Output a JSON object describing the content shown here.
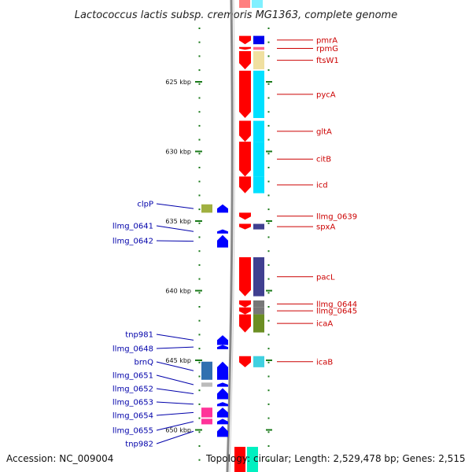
{
  "title": "Lactococcus lactis subsp. cremoris MG1363, complete genome",
  "accession": "Accession: NC_009004",
  "topology": "Topology: circular; Length: 2,529,478 bp; Genes: 2,515",
  "colors": {
    "forward_gene": "#ff0000",
    "reverse_gene": "#0000ff",
    "ruler": "#1a7a1a",
    "backbone": "#888888",
    "right_label": "#cc0000",
    "left_label": "#0000aa"
  },
  "kbp_marks": [
    {
      "label": "625 kbp",
      "kbp": 625
    },
    {
      "label": "630 kbp",
      "kbp": 630
    },
    {
      "label": "635 kbp",
      "kbp": 635
    },
    {
      "label": "640 kbp",
      "kbp": 640
    },
    {
      "label": "645 kbp",
      "kbp": 645
    },
    {
      "label": "650 kbp",
      "kbp": 650
    }
  ],
  "right_genes": [
    {
      "name": "pmrA",
      "start_kbp": 621.7,
      "end_kbp": 622.3,
      "strand": "+",
      "cog_color": "#0000ee"
    },
    {
      "name": "rpmG",
      "start_kbp": 622.5,
      "end_kbp": 622.7,
      "strand": "+",
      "cog_color": "#ff6688"
    },
    {
      "name": "ftsW1",
      "start_kbp": 622.8,
      "end_kbp": 624.1,
      "strand": "+",
      "cog_color": "#f0e0a0"
    },
    {
      "name": "pycA",
      "start_kbp": 624.2,
      "end_kbp": 627.6,
      "strand": "+",
      "cog_color": "#00e0ff"
    },
    {
      "name": "gltA",
      "start_kbp": 627.8,
      "end_kbp": 629.3,
      "strand": "+",
      "cog_color": "#00e0ff"
    },
    {
      "name": "citB",
      "start_kbp": 629.3,
      "end_kbp": 631.8,
      "strand": "+",
      "cog_color": "#00e0ff"
    },
    {
      "name": "icd",
      "start_kbp": 631.8,
      "end_kbp": 633.0,
      "strand": "+",
      "cog_color": "#00e0ff"
    },
    {
      "name": "llmg_0639",
      "start_kbp": 634.4,
      "end_kbp": 634.9,
      "strand": "+",
      "cog_color": ""
    },
    {
      "name": "spxA",
      "start_kbp": 635.2,
      "end_kbp": 635.6,
      "strand": "+",
      "cog_color": "#404090"
    },
    {
      "name": "pacL",
      "start_kbp": 637.6,
      "end_kbp": 640.4,
      "strand": "+",
      "cog_color": "#404090"
    },
    {
      "name": "llmg_0644",
      "start_kbp": 640.7,
      "end_kbp": 641.2,
      "strand": "+",
      "cog_color": "#777777"
    },
    {
      "name": "llmg_0645",
      "start_kbp": 641.2,
      "end_kbp": 641.7,
      "strand": "+",
      "cog_color": "#777777"
    },
    {
      "name": "icaA",
      "start_kbp": 641.7,
      "end_kbp": 643.0,
      "strand": "+",
      "cog_color": "#6b8e23"
    },
    {
      "name": "icaB",
      "start_kbp": 644.7,
      "end_kbp": 645.5,
      "strand": "+",
      "cog_color": "#40d0e0"
    }
  ],
  "left_genes": [
    {
      "name": "clpP",
      "start_kbp": 633.8,
      "end_kbp": 634.4,
      "strand": "-",
      "cog_color": "#a0b040"
    },
    {
      "name": "llmg_0641",
      "start_kbp": 635.6,
      "end_kbp": 635.9,
      "strand": "-",
      "cog_color": ""
    },
    {
      "name": "llmg_0642",
      "start_kbp": 636.0,
      "end_kbp": 636.9,
      "strand": "-",
      "cog_color": ""
    },
    {
      "name": "tnp981",
      "start_kbp": 643.2,
      "end_kbp": 643.9,
      "strand": "-",
      "cog_color": ""
    },
    {
      "name": "llmg_0648",
      "start_kbp": 643.9,
      "end_kbp": 644.2,
      "strand": "-",
      "cog_color": ""
    },
    {
      "name": "brnQ",
      "start_kbp": 645.1,
      "end_kbp": 646.4,
      "strand": "-",
      "cog_color": "#3070b0"
    },
    {
      "name": "llmg_0651",
      "start_kbp": 646.6,
      "end_kbp": 646.9,
      "strand": "-",
      "cog_color": "#bbbbbb"
    },
    {
      "name": "llmg_0652",
      "start_kbp": 647.0,
      "end_kbp": 647.8,
      "strand": "-",
      "cog_color": ""
    },
    {
      "name": "llmg_0653",
      "start_kbp": 648.0,
      "end_kbp": 648.3,
      "strand": "-",
      "cog_color": ""
    },
    {
      "name": "llmg_0654",
      "start_kbp": 648.4,
      "end_kbp": 649.1,
      "strand": "-",
      "cog_color": "#ff3399"
    },
    {
      "name": "llmg_0655",
      "start_kbp": 649.2,
      "end_kbp": 649.6,
      "strand": "-",
      "cog_color": "#ff3399"
    },
    {
      "name": "tnp982",
      "start_kbp": 649.7,
      "end_kbp": 650.5,
      "strand": "-",
      "cog_color": ""
    }
  ]
}
